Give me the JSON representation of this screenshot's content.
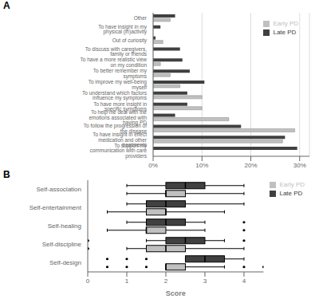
{
  "chart_data": [
    {
      "type": "bar",
      "title": "A",
      "orientation": "horizontal",
      "categories": [
        "To support my communication with care providers",
        "To have insight in effect medication and other treatments",
        "To follow the progression of the disease",
        "To help me deal with the emotions associated with having PD",
        "To have more insight in specific symptoms",
        "To understand which factors influence my symptoms",
        "To improve my well-being myself",
        "To better remember my symptoms",
        "To have a more realistic view on my condition",
        "To discuss with caregivers, family or friends",
        "Out of curiosity",
        "To have insight in my physical (in)activity",
        "Other"
      ],
      "series": [
        {
          "name": "Late PD",
          "color": "#404040",
          "values": [
            29.5,
            27.0,
            18.0,
            4.5,
            7.0,
            7.0,
            10.5,
            7.5,
            6.0,
            5.5,
            0.5,
            1.5,
            4.5
          ]
        },
        {
          "name": "Early PD",
          "color": "#c0c0c0",
          "values": [
            0.0,
            26.5,
            29.0,
            15.5,
            10.0,
            10.0,
            5.5,
            3.5,
            1.5,
            0.0,
            2.0,
            0.0,
            3.5
          ]
        }
      ],
      "xlim": [
        0,
        32
      ],
      "xticks": [
        {
          "value": 0,
          "label": "0%"
        },
        {
          "value": 10,
          "label": "10%"
        },
        {
          "value": 20,
          "label": "20%"
        },
        {
          "value": 30,
          "label": "30%"
        }
      ],
      "grid": true,
      "legend": "upper right"
    },
    {
      "type": "box",
      "title": "B",
      "orientation": "horizontal",
      "x_label": "Score",
      "categories": [
        "Self-association",
        "Self-entertainment",
        "Self-healing",
        "Self-discipline",
        "Self-design"
      ],
      "series": [
        {
          "name": "Late PD",
          "color": "#404040",
          "values": [
            {
              "whislo": 1.0,
              "q1": 2.0,
              "med": 2.5,
              "q3": 3.0,
              "whishi": 4.0,
              "fliers": []
            },
            {
              "whislo": 1.0,
              "q1": 1.5,
              "med": 2.0,
              "q3": 2.5,
              "whishi": 4.0,
              "fliers": []
            },
            {
              "whislo": 1.0,
              "q1": 1.5,
              "med": 2.0,
              "q3": 2.5,
              "whishi": 3.0,
              "fliers": [
                4.0
              ]
            },
            {
              "whislo": 1.5,
              "q1": 2.0,
              "med": 2.5,
              "q3": 3.0,
              "whishi": 3.5,
              "fliers": [
                4.0,
                0.0,
                0.0,
                0.0
              ]
            },
            {
              "whislo": 2.5,
              "q1": 2.5,
              "med": 3.0,
              "q3": 3.5,
              "whishi": 4.0,
              "fliers": [
                0.5,
                1.0,
                1.5
              ]
            }
          ]
        },
        {
          "name": "Early PD",
          "color": "#c0c0c0",
          "values": [
            {
              "whislo": 1.0,
              "q1": 2.0,
              "med": 2.0,
              "q3": 2.5,
              "whishi": 4.0,
              "fliers": []
            },
            {
              "whislo": 0.5,
              "q1": 1.5,
              "med": 2.0,
              "q3": 2.0,
              "whishi": 3.5,
              "fliers": []
            },
            {
              "whislo": 0.5,
              "q1": 1.5,
              "med": 1.5,
              "q3": 2.0,
              "whishi": 3.0,
              "fliers": [
                4.0
              ]
            },
            {
              "whislo": 1.0,
              "q1": 1.5,
              "med": 2.0,
              "q3": 2.5,
              "whishi": 4.0,
              "fliers": [
                0.0,
                0.0,
                0.0
              ]
            },
            {
              "whislo": 2.0,
              "q1": 2.0,
              "med": 2.0,
              "q3": 2.5,
              "whishi": 3.5,
              "fliers": [
                0.5,
                1.0,
                1.5,
                4.0,
                4.5
              ]
            }
          ]
        }
      ],
      "xlim": [
        0,
        4.5
      ],
      "xticks": [
        0,
        1,
        2,
        3,
        4
      ],
      "grid": false,
      "legend": "upper right"
    }
  ]
}
